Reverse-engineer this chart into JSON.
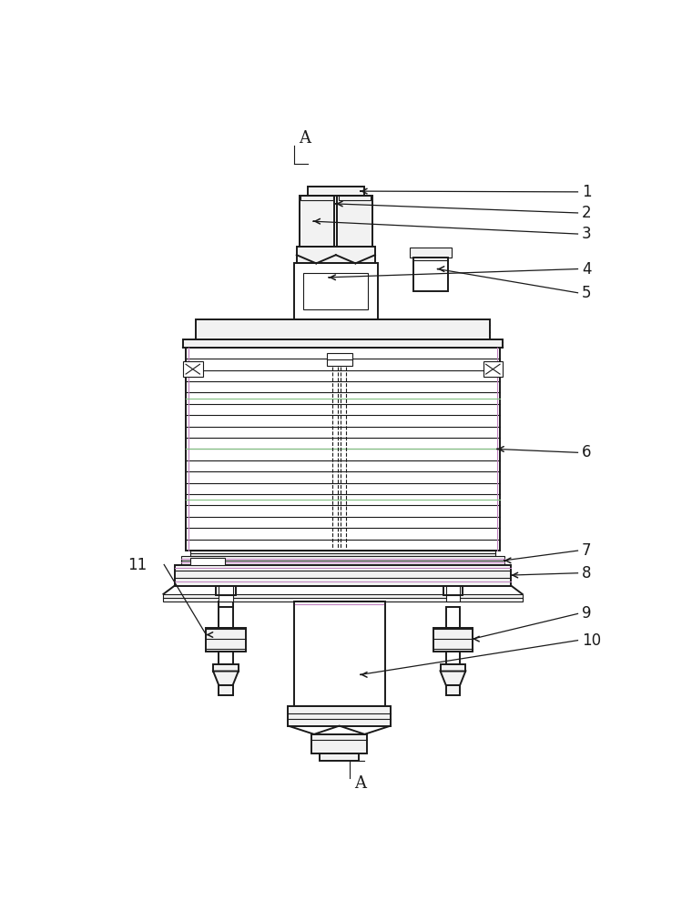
{
  "bg_color": "#ffffff",
  "line_color": "#1a1a1a",
  "fill_white": "#ffffff",
  "fill_light": "#f2f2f2",
  "purple_line": "#c080c0",
  "green_line": "#80c080",
  "gray_line": "#aaaaaa"
}
